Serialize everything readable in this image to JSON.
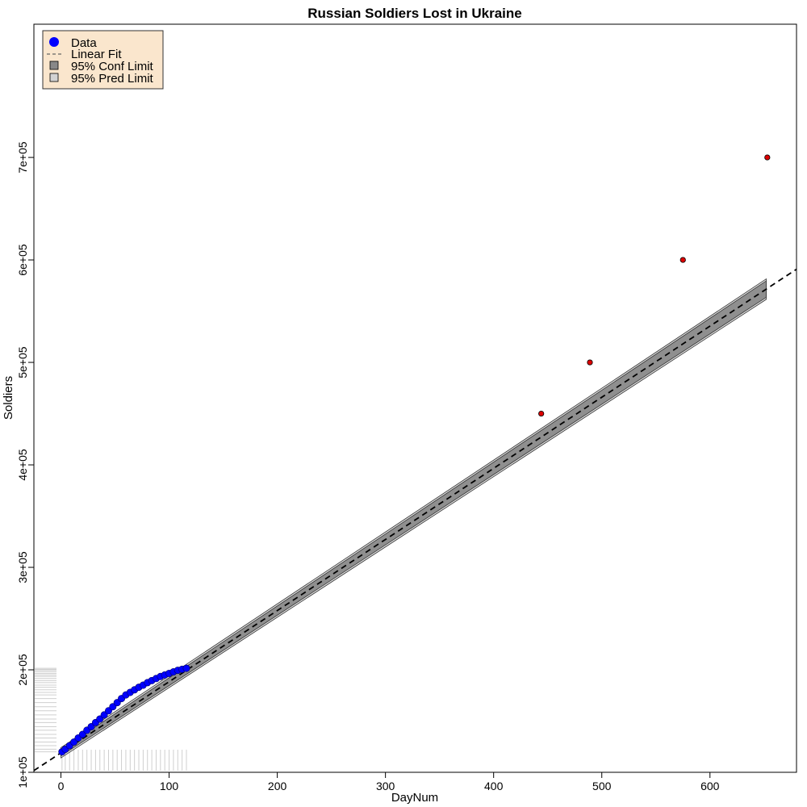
{
  "chart_data": {
    "type": "scatter",
    "title": "Russian Soldiers Lost in Ukraine",
    "xlabel": "DayNum",
    "ylabel": "Soldiers",
    "xlim": [
      -25,
      680
    ],
    "ylim": [
      100000,
      830000
    ],
    "x_ticks": [
      0,
      100,
      200,
      300,
      400,
      500,
      600
    ],
    "x_tick_labels": [
      "0",
      "100",
      "200",
      "300",
      "400",
      "500",
      "600"
    ],
    "y_ticks": [
      100000,
      200000,
      300000,
      400000,
      500000,
      600000,
      700000
    ],
    "y_tick_labels": [
      "1e+05",
      "2e+05",
      "3e+05",
      "4e+05",
      "5e+05",
      "6e+05",
      "7e+05"
    ],
    "grid": false,
    "legend_position": "top-left",
    "legend": [
      {
        "label": "Data",
        "marker": "filled-circle",
        "color": "#0000ff"
      },
      {
        "label": "Linear Fit",
        "marker": "dashed-line",
        "color": "#666666"
      },
      {
        "label": "95% Conf Limit",
        "marker": "box",
        "color": "#888888"
      },
      {
        "label": "95% Pred Limit",
        "marker": "box",
        "color": "#d3d3d3"
      }
    ],
    "legend_bg": "#fae6cd",
    "fit": {
      "name": "Linear Fit",
      "slope": 694,
      "intercept": 119000,
      "x_range": [
        -25,
        680
      ],
      "conf_band": {
        "x": [
          0,
          652
        ],
        "half_width_start": 3000,
        "half_width_end": 8000
      },
      "pred_band": {
        "x": [
          0,
          652
        ],
        "half_width_start": 5000,
        "half_width_end": 10000
      }
    },
    "series": [
      {
        "name": "Data",
        "color": "#0000ff",
        "x": [
          1,
          4,
          8,
          12,
          16,
          20,
          24,
          28,
          32,
          36,
          40,
          44,
          48,
          52,
          56,
          60,
          64,
          68,
          72,
          76,
          80,
          84,
          88,
          92,
          96,
          100,
          104,
          108,
          112,
          116
        ],
        "y": [
          120000,
          122500,
          126000,
          129500,
          133500,
          137000,
          141000,
          144500,
          148500,
          152000,
          156000,
          160000,
          164000,
          168000,
          172000,
          175500,
          178000,
          180500,
          183000,
          185000,
          187500,
          189500,
          191500,
          193500,
          195000,
          196500,
          198000,
          199500,
          200500,
          201500
        ]
      },
      {
        "name": "",
        "color": "#dd0000",
        "x": [
          444,
          489,
          575,
          653
        ],
        "y": [
          450000,
          500000,
          600000,
          700000
        ]
      }
    ]
  }
}
